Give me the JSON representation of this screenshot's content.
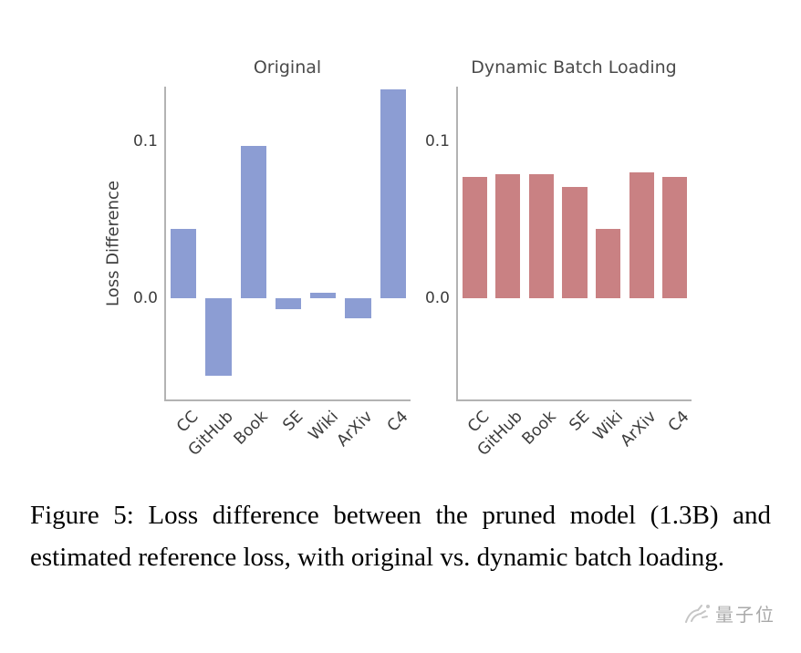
{
  "chart_data": [
    {
      "type": "bar",
      "title": "Original",
      "categories": [
        "CC",
        "GitHub",
        "Book",
        "SE",
        "Wiki",
        "ArXiv",
        "C4"
      ],
      "values": [
        0.044,
        -0.05,
        0.097,
        -0.007,
        0.003,
        -0.013,
        0.133
      ],
      "xlabel": "",
      "ylabel": "Loss Difference",
      "ylim": [
        -0.065,
        0.135
      ],
      "yticks": [
        {
          "v": 0.1,
          "label": "0.1"
        },
        {
          "v": 0.0,
          "label": "0.0"
        }
      ],
      "color": "#8c9dd3",
      "grid": false,
      "legend": "none"
    },
    {
      "type": "bar",
      "title": "Dynamic Batch Loading",
      "categories": [
        "CC",
        "GitHub",
        "Book",
        "SE",
        "Wiki",
        "ArXiv",
        "C4"
      ],
      "values": [
        0.077,
        0.079,
        0.079,
        0.071,
        0.044,
        0.08,
        0.077
      ],
      "xlabel": "",
      "ylabel": "",
      "ylim": [
        -0.065,
        0.135
      ],
      "yticks": [
        {
          "v": 0.1,
          "label": "0.1"
        },
        {
          "v": 0.0,
          "label": "0.0"
        }
      ],
      "color": "#c98183",
      "grid": false,
      "legend": "none"
    }
  ],
  "caption": {
    "text": "Figure 5: Loss difference between the pruned model (1.3B) and estimated reference loss, with original vs. dynamic batch loading."
  },
  "watermark": {
    "text": "量子位"
  }
}
